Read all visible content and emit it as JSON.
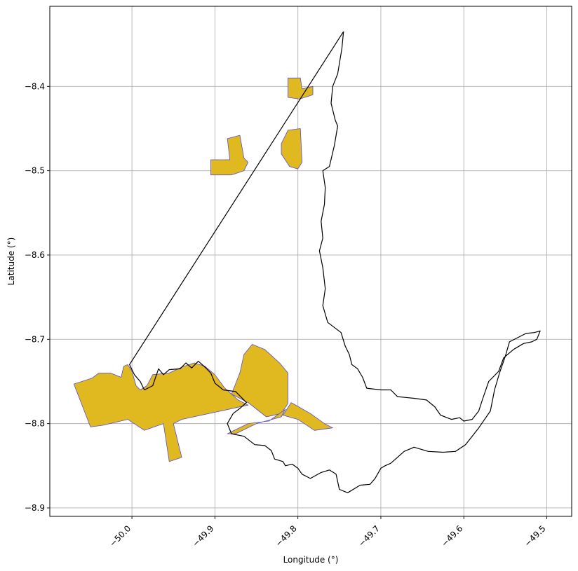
{
  "chart_data": {
    "type": "map",
    "xlabel": "Longitude (°)",
    "ylabel": "Latitude (°)",
    "xlim": [
      -50.099,
      -49.47
    ],
    "ylim": [
      -8.91,
      -8.305
    ],
    "x_ticks": [
      {
        "value": -50.0,
        "label": "−50.0"
      },
      {
        "value": -49.9,
        "label": "−49.9"
      },
      {
        "value": -49.8,
        "label": "−49.8"
      },
      {
        "value": -49.7,
        "label": "−49.7"
      },
      {
        "value": -49.6,
        "label": "−49.6"
      },
      {
        "value": -49.5,
        "label": "−49.5"
      }
    ],
    "y_ticks": [
      {
        "value": -8.4,
        "label": "−8.4"
      },
      {
        "value": -8.5,
        "label": "−8.5"
      },
      {
        "value": -8.6,
        "label": "−8.6"
      },
      {
        "value": -8.7,
        "label": "−8.7"
      },
      {
        "value": -8.8,
        "label": "−8.8"
      },
      {
        "value": -8.9,
        "label": "−8.9"
      }
    ],
    "grid": true,
    "colors": {
      "fill": "#dfb91f",
      "fill_edge": "#5a4fcf",
      "boundary": "#000000",
      "grid": "#b0b0b0"
    },
    "boundary": [
      [
        -49.745,
        -8.335
      ],
      [
        -49.747,
        -8.355
      ],
      [
        -49.752,
        -8.385
      ],
      [
        -49.758,
        -8.4
      ],
      [
        -49.76,
        -8.42
      ],
      [
        -49.755,
        -8.44
      ],
      [
        -49.752,
        -8.447
      ],
      [
        -49.756,
        -8.47
      ],
      [
        -49.762,
        -8.495
      ],
      [
        -49.77,
        -8.5
      ],
      [
        -49.767,
        -8.52
      ],
      [
        -49.768,
        -8.54
      ],
      [
        -49.772,
        -8.56
      ],
      [
        -49.77,
        -8.58
      ],
      [
        -49.774,
        -8.595
      ],
      [
        -49.77,
        -8.615
      ],
      [
        -49.767,
        -8.64
      ],
      [
        -49.77,
        -8.66
      ],
      [
        -49.764,
        -8.68
      ],
      [
        -49.748,
        -8.692
      ],
      [
        -49.743,
        -8.708
      ],
      [
        -49.738,
        -8.718
      ],
      [
        -49.735,
        -8.73
      ],
      [
        -49.728,
        -8.735
      ],
      [
        -49.722,
        -8.745
      ],
      [
        -49.717,
        -8.758
      ],
      [
        -49.7,
        -8.76
      ],
      [
        -49.688,
        -8.76
      ],
      [
        -49.68,
        -8.768
      ],
      [
        -49.67,
        -8.769
      ],
      [
        -49.66,
        -8.77
      ],
      [
        -49.645,
        -8.772
      ],
      [
        -49.635,
        -8.78
      ],
      [
        -49.628,
        -8.79
      ],
      [
        -49.615,
        -8.795
      ],
      [
        -49.605,
        -8.793
      ],
      [
        -49.6,
        -8.797
      ],
      [
        -49.59,
        -8.795
      ],
      [
        -49.582,
        -8.785
      ],
      [
        -49.577,
        -8.77
      ],
      [
        -49.57,
        -8.75
      ],
      [
        -49.558,
        -8.738
      ],
      [
        -49.552,
        -8.722
      ],
      [
        -49.54,
        -8.712
      ],
      [
        -49.528,
        -8.705
      ],
      [
        -49.518,
        -8.703
      ],
      [
        -49.512,
        -8.7
      ],
      [
        -49.508,
        -8.69
      ],
      [
        -49.515,
        -8.692
      ],
      [
        -49.525,
        -8.693
      ],
      [
        -49.535,
        -8.698
      ],
      [
        -49.545,
        -8.703
      ],
      [
        -49.55,
        -8.72
      ],
      [
        -49.557,
        -8.74
      ],
      [
        -49.563,
        -8.76
      ],
      [
        -49.568,
        -8.785
      ],
      [
        -49.582,
        -8.805
      ],
      [
        -49.59,
        -8.815
      ],
      [
        -49.598,
        -8.825
      ],
      [
        -49.61,
        -8.833
      ],
      [
        -49.625,
        -8.834
      ],
      [
        -49.643,
        -8.833
      ],
      [
        -49.66,
        -8.828
      ],
      [
        -49.672,
        -8.833
      ],
      [
        -49.68,
        -8.84
      ],
      [
        -49.688,
        -8.847
      ],
      [
        -49.695,
        -8.85
      ],
      [
        -49.7,
        -8.853
      ],
      [
        -49.707,
        -8.865
      ],
      [
        -49.713,
        -8.872
      ],
      [
        -49.725,
        -8.873
      ],
      [
        -49.74,
        -8.882
      ],
      [
        -49.75,
        -8.878
      ],
      [
        -49.754,
        -8.86
      ],
      [
        -49.762,
        -8.855
      ],
      [
        -49.772,
        -8.858
      ],
      [
        -49.785,
        -8.865
      ],
      [
        -49.795,
        -8.86
      ],
      [
        -49.8,
        -8.853
      ],
      [
        -49.807,
        -8.848
      ],
      [
        -49.815,
        -8.85
      ],
      [
        -49.818,
        -8.845
      ],
      [
        -49.828,
        -8.842
      ],
      [
        -49.832,
        -8.832
      ],
      [
        -49.84,
        -8.826
      ],
      [
        -49.852,
        -8.825
      ],
      [
        -49.865,
        -8.815
      ],
      [
        -49.88,
        -8.812
      ],
      [
        -49.885,
        -8.8
      ],
      [
        -49.878,
        -8.788
      ],
      [
        -49.87,
        -8.782
      ],
      [
        -49.862,
        -8.775
      ],
      [
        -49.875,
        -8.762
      ],
      [
        -49.89,
        -8.76
      ],
      [
        -49.9,
        -8.752
      ],
      [
        -49.905,
        -8.74
      ],
      [
        -49.912,
        -8.733
      ],
      [
        -49.92,
        -8.726
      ],
      [
        -49.928,
        -8.734
      ],
      [
        -49.935,
        -8.728
      ],
      [
        -49.942,
        -8.735
      ],
      [
        -49.955,
        -8.736
      ],
      [
        -49.962,
        -8.742
      ],
      [
        -49.968,
        -8.735
      ],
      [
        -49.975,
        -8.755
      ],
      [
        -49.985,
        -8.76
      ],
      [
        -49.99,
        -8.75
      ],
      [
        -49.997,
        -8.742
      ],
      [
        -50.003,
        -8.73
      ],
      [
        -49.745,
        -8.335
      ]
    ],
    "areas": [
      [
        [
          -50.07,
          -8.753
        ],
        [
          -50.048,
          -8.746
        ],
        [
          -50.04,
          -8.74
        ],
        [
          -50.026,
          -8.74
        ],
        [
          -50.013,
          -8.745
        ],
        [
          -50.01,
          -8.732
        ],
        [
          -50.005,
          -8.73
        ],
        [
          -50.0,
          -8.738
        ],
        [
          -49.995,
          -8.755
        ],
        [
          -49.99,
          -8.76
        ],
        [
          -49.982,
          -8.755
        ],
        [
          -49.975,
          -8.742
        ],
        [
          -49.955,
          -8.74
        ],
        [
          -49.94,
          -8.733
        ],
        [
          -49.925,
          -8.728
        ],
        [
          -49.912,
          -8.732
        ],
        [
          -49.9,
          -8.742
        ],
        [
          -49.888,
          -8.758
        ],
        [
          -49.872,
          -8.772
        ],
        [
          -49.86,
          -8.778
        ],
        [
          -49.94,
          -8.795
        ],
        [
          -49.95,
          -8.8
        ],
        [
          -49.94,
          -8.84
        ],
        [
          -49.955,
          -8.845
        ],
        [
          -49.962,
          -8.8
        ],
        [
          -49.985,
          -8.808
        ],
        [
          -50.005,
          -8.795
        ],
        [
          -50.035,
          -8.802
        ],
        [
          -50.05,
          -8.804
        ],
        [
          -50.07,
          -8.753
        ]
      ],
      [
        [
          -49.88,
          -8.765
        ],
        [
          -49.87,
          -8.74
        ],
        [
          -49.865,
          -8.718
        ],
        [
          -49.855,
          -8.706
        ],
        [
          -49.84,
          -8.712
        ],
        [
          -49.822,
          -8.728
        ],
        [
          -49.812,
          -8.74
        ],
        [
          -49.812,
          -8.776
        ],
        [
          -49.82,
          -8.788
        ],
        [
          -49.838,
          -8.792
        ],
        [
          -49.86,
          -8.775
        ],
        [
          -49.88,
          -8.765
        ]
      ],
      [
        [
          -49.808,
          -8.775
        ],
        [
          -49.785,
          -8.788
        ],
        [
          -49.768,
          -8.8
        ],
        [
          -49.758,
          -8.805
        ],
        [
          -49.78,
          -8.808
        ],
        [
          -49.8,
          -8.795
        ],
        [
          -49.818,
          -8.79
        ],
        [
          -49.808,
          -8.775
        ]
      ],
      [
        [
          -49.885,
          -8.812
        ],
        [
          -49.86,
          -8.8
        ],
        [
          -49.835,
          -8.797
        ],
        [
          -49.815,
          -8.783
        ],
        [
          -49.82,
          -8.792
        ],
        [
          -49.85,
          -8.8
        ],
        [
          -49.875,
          -8.812
        ],
        [
          -49.885,
          -8.812
        ]
      ],
      [
        [
          -49.905,
          -8.487
        ],
        [
          -49.882,
          -8.487
        ],
        [
          -49.885,
          -8.462
        ],
        [
          -49.87,
          -8.458
        ],
        [
          -49.865,
          -8.485
        ],
        [
          -49.86,
          -8.49
        ],
        [
          -49.865,
          -8.5
        ],
        [
          -49.88,
          -8.505
        ],
        [
          -49.905,
          -8.505
        ],
        [
          -49.905,
          -8.487
        ]
      ],
      [
        [
          -49.82,
          -8.468
        ],
        [
          -49.812,
          -8.452
        ],
        [
          -49.797,
          -8.45
        ],
        [
          -49.795,
          -8.49
        ],
        [
          -49.8,
          -8.498
        ],
        [
          -49.81,
          -8.495
        ],
        [
          -49.82,
          -8.48
        ],
        [
          -49.82,
          -8.468
        ]
      ],
      [
        [
          -49.812,
          -8.39
        ],
        [
          -49.797,
          -8.39
        ],
        [
          -49.795,
          -8.403
        ],
        [
          -49.782,
          -8.4
        ],
        [
          -49.782,
          -8.41
        ],
        [
          -49.798,
          -8.415
        ],
        [
          -49.812,
          -8.413
        ],
        [
          -49.812,
          -8.39
        ]
      ]
    ]
  }
}
